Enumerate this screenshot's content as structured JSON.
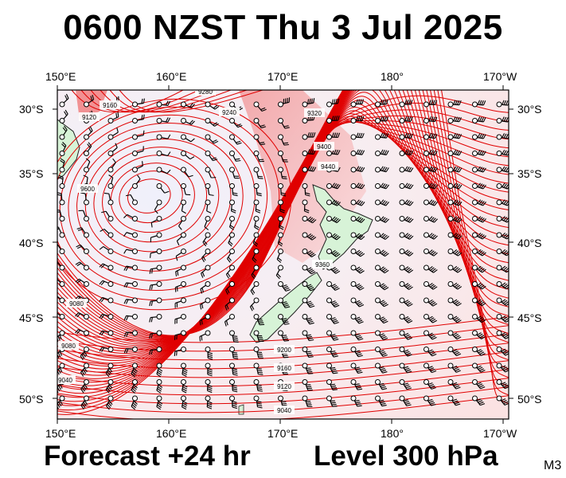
{
  "title": "0600 NZST Thu 3 Jul 2025",
  "footer": {
    "forecast": "Forecast +24 hr",
    "level": "Level 300 hPa",
    "model_code": "M3"
  },
  "axes": {
    "lon_labels": [
      "150°E",
      "160°E",
      "170°E",
      "180°",
      "170°W"
    ],
    "lat_labels": [
      "30°S",
      "35°S",
      "40°S",
      "45°S",
      "50°S"
    ]
  },
  "contour_labels": [
    "9160",
    "9120",
    "9280",
    "9240",
    "9320",
    "9400",
    "9440",
    "9600",
    "9080",
    "9200",
    "9360",
    "9040"
  ],
  "colors": {
    "contour": "#e00000",
    "land": "#d7f3d7",
    "background_low": "#eeeefa",
    "high_shade": "#f08a8a"
  }
}
